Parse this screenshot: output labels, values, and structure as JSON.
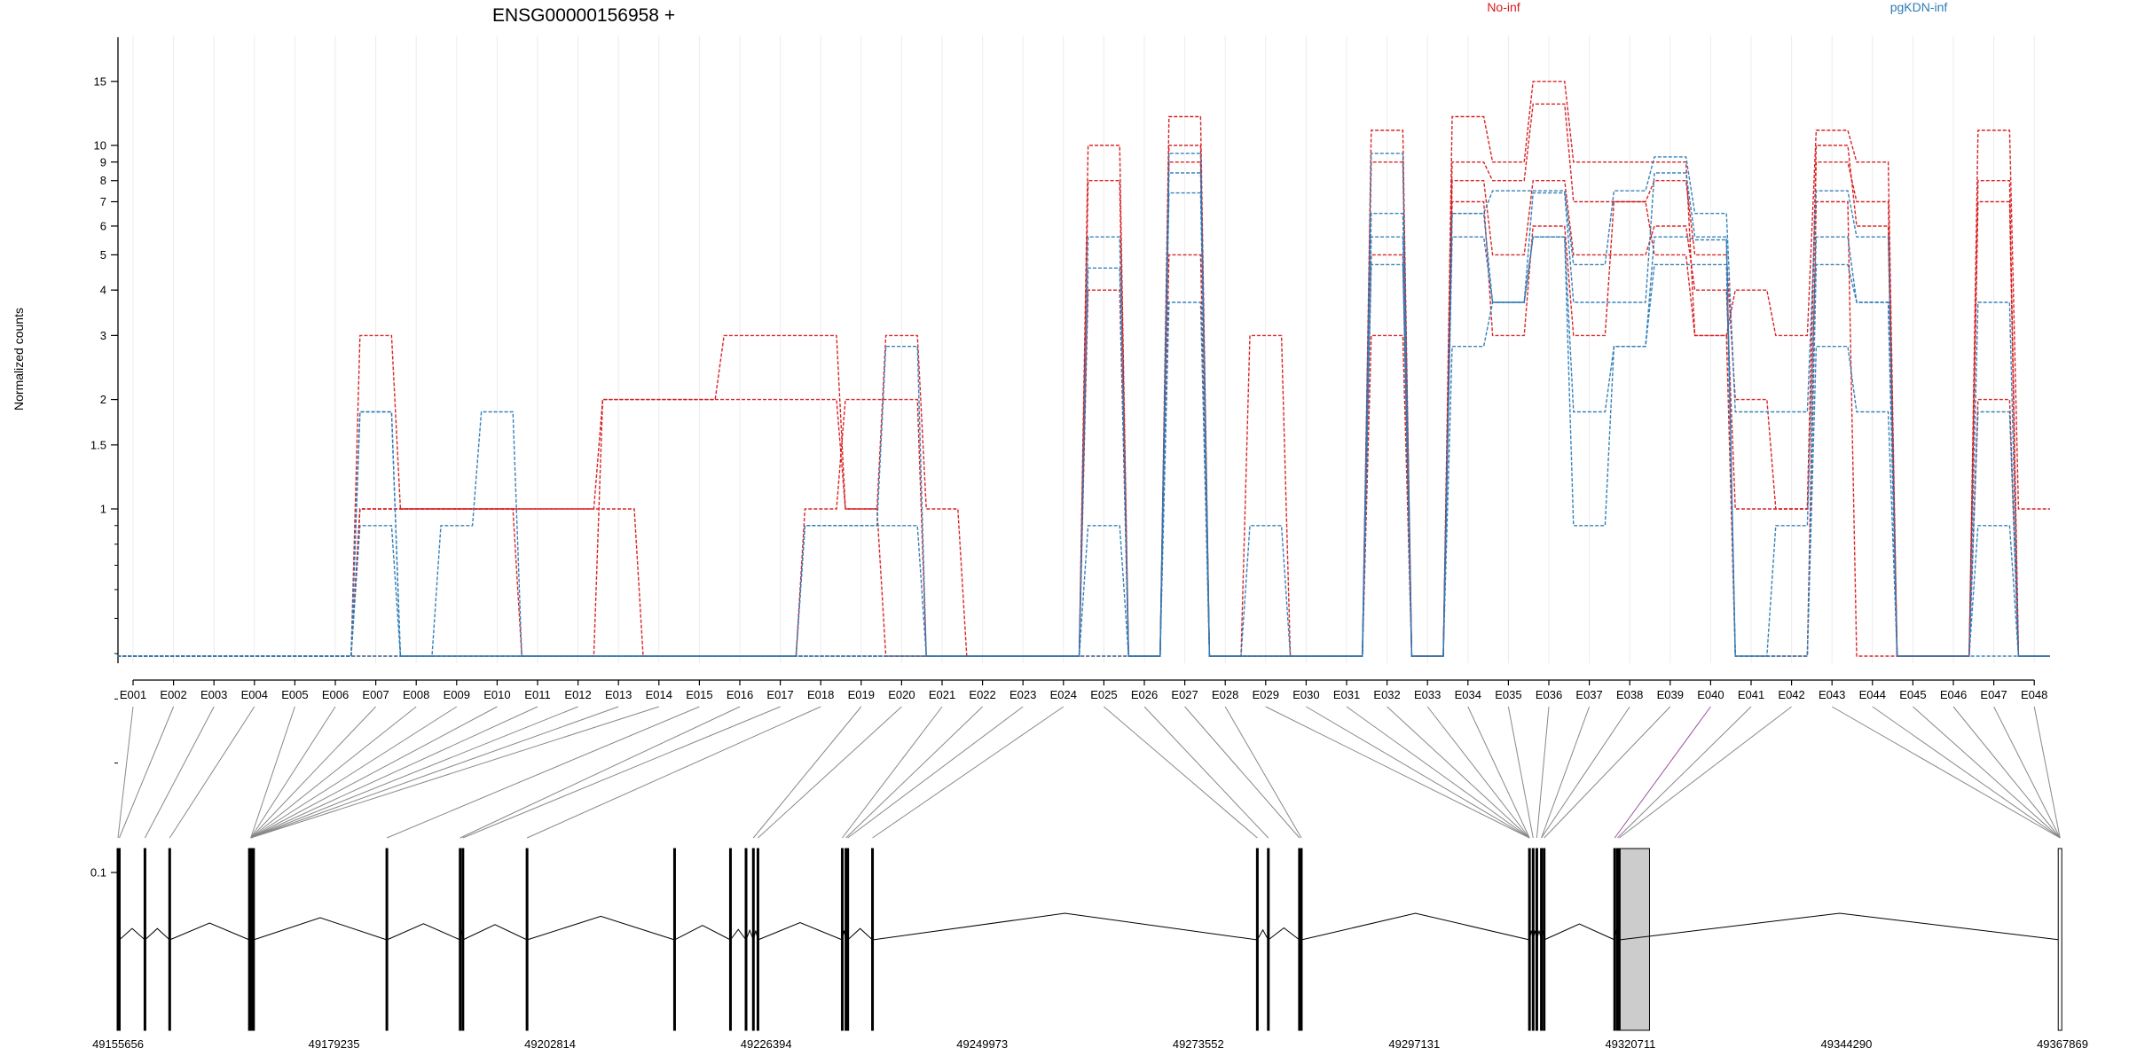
{
  "chart_data": {
    "type": "line",
    "title": "ENSG00000156958 +",
    "ylabel": "Normalized counts",
    "xlabel": "",
    "y_scale": "log-like (0 shown at baseline)",
    "y_ticks": [
      0.1,
      1,
      1.5,
      2,
      3,
      4,
      5,
      6,
      7,
      8,
      9,
      10,
      15
    ],
    "y_tick_labels": [
      "0.1",
      "1",
      "1.5",
      "2",
      "3",
      "4",
      "5",
      "6",
      "7",
      "8",
      "9",
      "10",
      "15"
    ],
    "legend": [
      {
        "name": "No-inf",
        "color": "#d7191c"
      },
      {
        "name": "pgKDN-inf",
        "color": "#2c7bb6"
      }
    ],
    "categories": [
      "E001",
      "E002",
      "E003",
      "E004",
      "E005",
      "E006",
      "E007",
      "E008",
      "E009",
      "E010",
      "E011",
      "E012",
      "E013",
      "E014",
      "E015",
      "E016",
      "E017",
      "E018",
      "E019",
      "E020",
      "E021",
      "E022",
      "E023",
      "E024",
      "E025",
      "E026",
      "E027",
      "E028",
      "E029",
      "E030",
      "E031",
      "E032",
      "E033",
      "E034",
      "E035",
      "E036",
      "E037",
      "E038",
      "E039",
      "E040",
      "E041",
      "E042",
      "E043",
      "E044",
      "E045",
      "E046",
      "E047",
      "E048"
    ],
    "series": [
      {
        "group": "No-inf",
        "color": "#d7191c",
        "values": [
          0,
          0,
          0,
          0,
          0,
          0,
          3,
          1,
          1,
          1,
          1,
          1,
          2,
          2,
          2,
          3,
          3,
          3,
          1,
          3,
          1,
          0,
          0,
          0,
          10,
          0,
          12,
          0,
          3,
          0,
          0,
          11,
          0,
          12,
          9,
          15,
          9,
          9,
          9,
          3,
          4,
          3,
          11,
          9,
          0,
          0,
          11,
          1
        ]
      },
      {
        "group": "No-inf",
        "color": "#d7191c",
        "values": [
          0,
          0,
          0,
          0,
          0,
          0,
          1,
          1,
          1,
          1,
          1,
          1,
          1,
          0,
          0,
          0,
          0,
          1,
          2,
          2,
          0,
          0,
          0,
          0,
          8,
          0,
          10,
          0,
          0,
          0,
          0,
          9,
          0,
          9,
          8,
          13,
          7,
          7,
          8,
          5,
          2,
          1,
          9,
          7,
          0,
          0,
          8,
          0
        ]
      },
      {
        "group": "No-inf",
        "color": "#d7191c",
        "values": [
          0,
          0,
          0,
          0,
          0,
          0,
          1,
          1,
          1,
          1,
          0,
          0,
          2,
          2,
          2,
          2,
          2,
          2,
          1,
          0,
          0,
          0,
          0,
          0,
          4,
          0,
          9,
          0,
          0,
          0,
          0,
          5,
          0,
          8,
          5,
          8,
          5,
          5,
          6,
          4,
          1,
          1,
          10,
          6,
          0,
          0,
          7,
          0
        ]
      },
      {
        "group": "No-inf",
        "color": "#d7191c",
        "values": [
          0,
          0,
          0,
          0,
          0,
          0,
          0,
          0,
          0,
          0,
          0,
          0,
          0,
          0,
          0,
          0,
          0,
          0,
          0,
          0,
          0,
          0,
          0,
          0,
          0,
          0,
          5,
          0,
          0,
          0,
          0,
          3,
          0,
          7,
          3,
          6,
          3,
          7,
          5,
          3,
          0,
          0,
          7,
          0,
          0,
          0,
          2,
          0
        ]
      },
      {
        "group": "pgKDN-inf",
        "color": "#2c7bb6",
        "values": [
          0,
          0,
          0,
          0,
          0,
          0,
          1.85,
          0,
          0.9,
          1.85,
          0,
          0,
          0,
          0,
          0,
          0,
          0,
          0.9,
          0.9,
          2.8,
          0,
          0,
          0,
          0,
          5.6,
          0,
          9.5,
          0,
          0.9,
          0,
          0,
          9.5,
          0,
          6.5,
          7.5,
          7.5,
          4.7,
          7.5,
          9.3,
          6.5,
          1.85,
          1.85,
          7.5,
          5.6,
          0,
          0,
          3.7,
          0
        ]
      },
      {
        "group": "pgKDN-inf",
        "color": "#2c7bb6",
        "values": [
          0,
          0,
          0,
          0,
          0,
          0,
          1.85,
          0,
          0,
          0,
          0,
          0,
          0,
          0,
          0,
          0,
          0,
          0.9,
          0.9,
          0.9,
          0,
          0,
          0,
          0,
          4.6,
          0,
          8.4,
          0,
          0,
          0,
          0,
          6.5,
          0,
          6.5,
          3.7,
          7.4,
          3.7,
          3.7,
          8.4,
          5.6,
          0,
          0.9,
          5.6,
          3.7,
          0,
          0,
          1.85,
          0
        ]
      },
      {
        "group": "pgKDN-inf",
        "color": "#2c7bb6",
        "values": [
          0,
          0,
          0,
          0,
          0,
          0,
          0.9,
          0,
          0,
          0,
          0,
          0,
          0,
          0,
          0,
          0,
          0,
          0,
          0,
          0,
          0,
          0,
          0,
          0,
          0.9,
          0,
          7.4,
          0,
          0,
          0,
          0,
          5.6,
          0,
          5.6,
          3.7,
          5.6,
          1.85,
          2.8,
          5.6,
          5.5,
          0,
          0,
          4.7,
          3.7,
          0,
          0,
          0.9,
          0
        ]
      },
      {
        "group": "pgKDN-inf",
        "color": "#2c7bb6",
        "values": [
          0,
          0,
          0,
          0,
          0,
          0,
          0,
          0,
          0,
          0,
          0,
          0,
          0,
          0,
          0,
          0,
          0,
          0,
          0,
          0,
          0,
          0,
          0,
          0,
          0,
          0,
          3.7,
          0,
          0,
          0,
          0,
          4.7,
          0,
          2.8,
          3.7,
          5.6,
          0.9,
          2.8,
          4.7,
          4.7,
          0,
          0,
          2.8,
          1.85,
          0,
          0,
          0,
          0
        ]
      }
    ],
    "genomic_coordinates": [
      "49155656",
      "49179235",
      "49202814",
      "49226394",
      "49249973",
      "49273552",
      "49297131",
      "49320711",
      "49344290",
      "49367869"
    ],
    "genomic_range": [
      49155656,
      49367869
    ],
    "exon_positions_bp": [
      49155656,
      49155800,
      49158600,
      49161300,
      49170000,
      49170150,
      49170300,
      49170450,
      49185000,
      49193000,
      49193300,
      49200300,
      49216400,
      49222500,
      49224200,
      49225000,
      49225500,
      49234700,
      49235100,
      49235300,
      49238000,
      49280000,
      49281200,
      49284600,
      49284800,
      49309700,
      49310100,
      49310500,
      49311000,
      49311300,
      49319000,
      49319300,
      49319500,
      49367600
    ],
    "highlighted_exon": "E040",
    "highlight_color": "#9e4fa6",
    "shaded_region_bp": [
      49319300,
      49322800
    ]
  }
}
